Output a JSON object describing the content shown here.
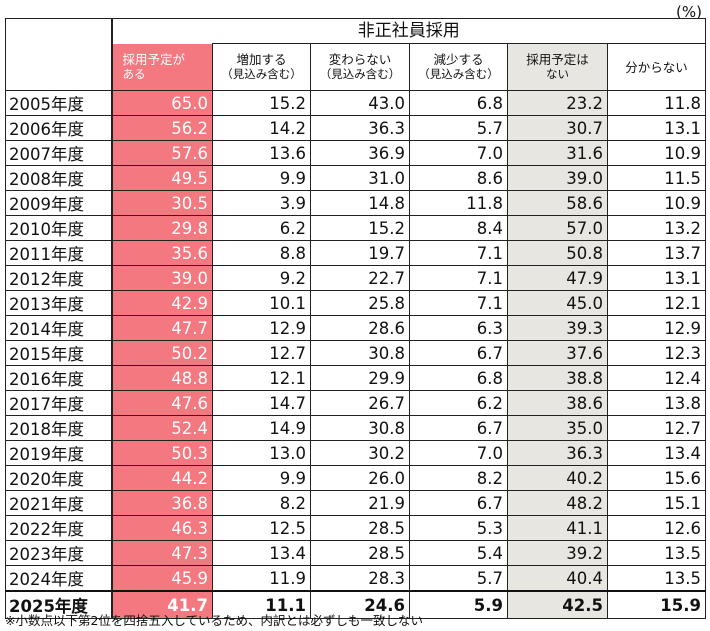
{
  "unit_label": "(%)",
  "group_header": "非正社員採用",
  "sub_headers": [
    {
      "line1": "採用予定が",
      "line2": "ある"
    },
    {
      "line1": "増加する",
      "line2": "（見込み含む）"
    },
    {
      "line1": "変わらない",
      "line2": "（見込み含む）"
    },
    {
      "line1": "減少する",
      "line2": "（見込み含む）"
    },
    {
      "line1": "採用予定は",
      "line2": "ない"
    },
    {
      "line1": "分からない",
      "line2": ""
    }
  ],
  "rows": [
    {
      "year": "2005年度",
      "values": [
        "65.0",
        "15.2",
        "43.0",
        "6.8",
        "23.2",
        "11.8"
      ]
    },
    {
      "year": "2006年度",
      "values": [
        "56.2",
        "14.2",
        "36.3",
        "5.7",
        "30.7",
        "13.1"
      ]
    },
    {
      "year": "2007年度",
      "values": [
        "57.6",
        "13.6",
        "36.9",
        "7.0",
        "31.6",
        "10.9"
      ]
    },
    {
      "year": "2008年度",
      "values": [
        "49.5",
        "9.9",
        "31.0",
        "8.6",
        "39.0",
        "11.5"
      ]
    },
    {
      "year": "2009年度",
      "values": [
        "30.5",
        "3.9",
        "14.8",
        "11.8",
        "58.6",
        "10.9"
      ]
    },
    {
      "year": "2010年度",
      "values": [
        "29.8",
        "6.2",
        "15.2",
        "8.4",
        "57.0",
        "13.2"
      ]
    },
    {
      "year": "2011年度",
      "values": [
        "35.6",
        "8.8",
        "19.7",
        "7.1",
        "50.8",
        "13.7"
      ]
    },
    {
      "year": "2012年度",
      "values": [
        "39.0",
        "9.2",
        "22.7",
        "7.1",
        "47.9",
        "13.1"
      ]
    },
    {
      "year": "2013年度",
      "values": [
        "42.9",
        "10.1",
        "25.8",
        "7.1",
        "45.0",
        "12.1"
      ]
    },
    {
      "year": "2014年度",
      "values": [
        "47.7",
        "12.9",
        "28.6",
        "6.3",
        "39.3",
        "12.9"
      ]
    },
    {
      "year": "2015年度",
      "values": [
        "50.2",
        "12.7",
        "30.8",
        "6.7",
        "37.6",
        "12.3"
      ]
    },
    {
      "year": "2016年度",
      "values": [
        "48.8",
        "12.1",
        "29.9",
        "6.8",
        "38.8",
        "12.4"
      ]
    },
    {
      "year": "2017年度",
      "values": [
        "47.6",
        "14.7",
        "26.7",
        "6.2",
        "38.6",
        "13.8"
      ]
    },
    {
      "year": "2018年度",
      "values": [
        "52.4",
        "14.9",
        "30.8",
        "6.7",
        "35.0",
        "12.7"
      ]
    },
    {
      "year": "2019年度",
      "values": [
        "50.3",
        "13.0",
        "30.2",
        "7.0",
        "36.3",
        "13.4"
      ]
    },
    {
      "year": "2020年度",
      "values": [
        "44.2",
        "9.9",
        "26.0",
        "8.2",
        "40.2",
        "15.6"
      ]
    },
    {
      "year": "2021年度",
      "values": [
        "36.8",
        "8.2",
        "21.9",
        "6.7",
        "48.2",
        "15.1"
      ]
    },
    {
      "year": "2022年度",
      "values": [
        "46.3",
        "12.5",
        "28.5",
        "5.3",
        "41.1",
        "12.6"
      ]
    },
    {
      "year": "2023年度",
      "values": [
        "47.3",
        "13.4",
        "28.5",
        "5.4",
        "39.2",
        "13.5"
      ]
    },
    {
      "year": "2024年度",
      "values": [
        "45.9",
        "11.9",
        "28.3",
        "5.7",
        "40.4",
        "13.5"
      ]
    },
    {
      "year": "2025年度",
      "values": [
        "41.7",
        "11.1",
        "24.6",
        "5.9",
        "42.5",
        "15.9"
      ]
    }
  ],
  "footnote": "※小数点以下第2位を四捨五入しているため、内訳とは必ずしも一致しない",
  "colors": {
    "highlight_pink": "#f47880",
    "highlight_gray": "#e8e6e1"
  }
}
